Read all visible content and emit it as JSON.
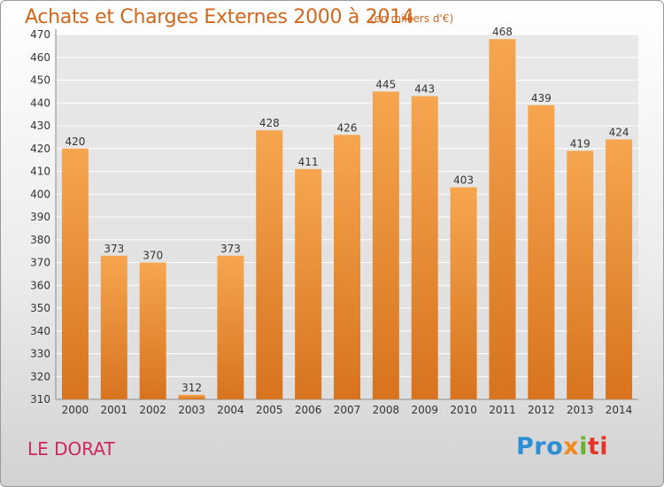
{
  "chart_data": {
    "type": "bar",
    "title": "Achats et Charges Externes 2000 à 2014",
    "subtitle": "(en milliers d'€)",
    "categories": [
      "2000",
      "2001",
      "2002",
      "2003",
      "2004",
      "2005",
      "2006",
      "2007",
      "2008",
      "2009",
      "2010",
      "2011",
      "2012",
      "2013",
      "2014"
    ],
    "values": [
      420,
      373,
      370,
      312,
      373,
      428,
      411,
      426,
      445,
      443,
      403,
      468,
      439,
      419,
      424
    ],
    "ylim": [
      310,
      470
    ],
    "yticks": [
      310,
      320,
      330,
      340,
      350,
      360,
      370,
      380,
      390,
      400,
      410,
      420,
      430,
      440,
      450,
      460,
      470
    ],
    "grid": true,
    "bar_color": "#f0a04b"
  },
  "footer": {
    "town": "LE DORAT",
    "logo": [
      "Pro",
      "x",
      "i",
      "ti"
    ]
  }
}
